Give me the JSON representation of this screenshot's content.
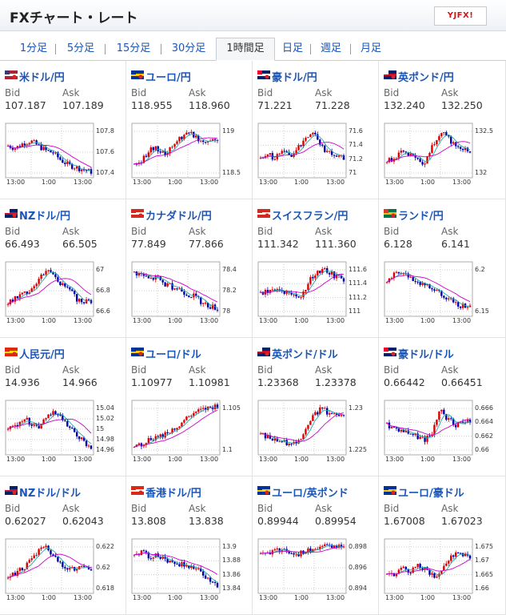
{
  "header": {
    "title": "FXチャート・レート",
    "logo_text": "YJFX!"
  },
  "tabs": [
    {
      "label": "1分足"
    },
    {
      "label": "5分足"
    },
    {
      "label": "15分足"
    },
    {
      "label": "30分足"
    },
    {
      "label": "1時間足",
      "active": true
    },
    {
      "label": "日足"
    },
    {
      "label": "週足"
    },
    {
      "label": "月足"
    }
  ],
  "labels": {
    "bid": "Bid",
    "ask": "Ask"
  },
  "pairs": [
    {
      "name": "米ドル/円",
      "bid": "107.187",
      "ask": "107.189",
      "yticks": [
        "107.8",
        "107.6",
        "107.4"
      ],
      "xticks": [
        "13:00",
        "1:00",
        "13:00"
      ],
      "flag": "us",
      "trend": [
        0.6,
        0.55,
        0.65,
        0.7,
        0.6,
        0.5,
        0.45,
        0.3,
        0.2,
        0.15,
        0.1,
        0.05
      ]
    },
    {
      "name": "ユーロ/円",
      "bid": "118.955",
      "ask": "118.960",
      "yticks": [
        "119",
        "118.5"
      ],
      "xticks": [
        "13:00",
        "1:00",
        "13:00"
      ],
      "flag": "eu",
      "trend": [
        0.2,
        0.3,
        0.5,
        0.55,
        0.4,
        0.6,
        0.75,
        0.9,
        0.8,
        0.7,
        0.72,
        0.75
      ]
    },
    {
      "name": "豪ドル/円",
      "bid": "71.221",
      "ask": "71.228",
      "yticks": [
        "71.6",
        "71.4",
        "71.2",
        "71"
      ],
      "xticks": [
        "13:00",
        "1:00",
        "13:00"
      ],
      "flag": "au",
      "trend": [
        0.3,
        0.4,
        0.35,
        0.5,
        0.4,
        0.55,
        0.8,
        0.9,
        0.6,
        0.45,
        0.4,
        0.35
      ]
    },
    {
      "name": "英ポンド/円",
      "bid": "132.240",
      "ask": "132.250",
      "yticks": [
        "132.5",
        "132"
      ],
      "xticks": [
        "13:00",
        "1:00",
        "13:00"
      ],
      "flag": "uk",
      "trend": [
        0.3,
        0.35,
        0.45,
        0.4,
        0.3,
        0.2,
        0.6,
        0.85,
        0.8,
        0.6,
        0.55,
        0.5
      ]
    },
    {
      "name": "NZドル/円",
      "bid": "66.493",
      "ask": "66.505",
      "yticks": [
        "67",
        "66.8",
        "66.6"
      ],
      "xticks": [
        "13:00",
        "1:00",
        "13:00"
      ],
      "flag": "nz",
      "trend": [
        0.2,
        0.3,
        0.4,
        0.5,
        0.7,
        0.9,
        0.85,
        0.6,
        0.5,
        0.3,
        0.25,
        0.25
      ]
    },
    {
      "name": "カナダドル/円",
      "bid": "77.849",
      "ask": "77.866",
      "yticks": [
        "78.4",
        "78.2",
        "78"
      ],
      "xticks": [
        "13:00",
        "1:00",
        "13:00"
      ],
      "flag": "ca",
      "trend": [
        0.85,
        0.8,
        0.7,
        0.75,
        0.6,
        0.55,
        0.5,
        0.4,
        0.35,
        0.2,
        0.15,
        0.1
      ]
    },
    {
      "name": "スイスフラン/円",
      "bid": "111.342",
      "ask": "111.360",
      "yticks": [
        "111.6",
        "111.4",
        "111.2",
        "111"
      ],
      "xticks": [
        "13:00",
        "1:00",
        "13:00"
      ],
      "flag": "ch",
      "trend": [
        0.4,
        0.45,
        0.5,
        0.45,
        0.35,
        0.3,
        0.55,
        0.8,
        0.9,
        0.85,
        0.75,
        0.7
      ]
    },
    {
      "name": "ランド/円",
      "bid": "6.128",
      "ask": "6.141",
      "yticks": [
        "6.2",
        "6.15"
      ],
      "xticks": [
        "13:00",
        "1:00",
        "13:00"
      ],
      "flag": "za",
      "trend": [
        0.7,
        0.8,
        0.85,
        0.75,
        0.65,
        0.6,
        0.5,
        0.4,
        0.3,
        0.2,
        0.15,
        0.2
      ]
    },
    {
      "name": "人民元/円",
      "bid": "14.936",
      "ask": "14.966",
      "yticks": [
        "15.04",
        "15.02",
        "15",
        "14.98",
        "14.96"
      ],
      "xticks": [
        "13:00",
        "1:00",
        "13:00"
      ],
      "flag": "cn",
      "trend": [
        0.5,
        0.55,
        0.7,
        0.6,
        0.5,
        0.75,
        0.8,
        0.7,
        0.5,
        0.35,
        0.2,
        0.1
      ]
    },
    {
      "name": "ユーロ/ドル",
      "bid": "1.10977",
      "ask": "1.10981",
      "yticks": [
        "1.105",
        "1.1"
      ],
      "xticks": [
        "13:00",
        "1:00",
        "13:00"
      ],
      "flag": "eu",
      "trend": [
        0.1,
        0.15,
        0.25,
        0.3,
        0.35,
        0.45,
        0.55,
        0.7,
        0.8,
        0.85,
        0.9,
        0.95
      ]
    },
    {
      "name": "英ポンド/ドル",
      "bid": "1.23368",
      "ask": "1.23378",
      "yticks": [
        "1.23",
        "1.225"
      ],
      "xticks": [
        "13:00",
        "1:00",
        "13:00"
      ],
      "flag": "uk",
      "trend": [
        0.35,
        0.3,
        0.25,
        0.2,
        0.15,
        0.25,
        0.45,
        0.75,
        0.9,
        0.8,
        0.75,
        0.8
      ]
    },
    {
      "name": "豪ドル/ドル",
      "bid": "0.66442",
      "ask": "0.66451",
      "yticks": [
        "0.666",
        "0.664",
        "0.662",
        "0.66"
      ],
      "xticks": [
        "13:00",
        "1:00",
        "13:00"
      ],
      "flag": "au",
      "trend": [
        0.55,
        0.5,
        0.45,
        0.4,
        0.3,
        0.25,
        0.4,
        0.85,
        0.7,
        0.55,
        0.6,
        0.65
      ]
    },
    {
      "name": "NZドル/ドル",
      "bid": "0.62027",
      "ask": "0.62043",
      "yticks": [
        "0.622",
        "0.62",
        "0.618"
      ],
      "xticks": [
        "13:00",
        "1:00",
        "13:00"
      ],
      "flag": "nz",
      "trend": [
        0.3,
        0.35,
        0.45,
        0.6,
        0.8,
        0.9,
        0.7,
        0.55,
        0.45,
        0.4,
        0.5,
        0.45
      ]
    },
    {
      "name": "香港ドル/円",
      "bid": "13.808",
      "ask": "13.838",
      "yticks": [
        "13.9",
        "13.88",
        "13.86",
        "13.84"
      ],
      "xticks": [
        "13:00",
        "1:00",
        "13:00"
      ],
      "flag": "hk",
      "trend": [
        0.75,
        0.8,
        0.7,
        0.75,
        0.65,
        0.6,
        0.55,
        0.5,
        0.45,
        0.35,
        0.2,
        0.1
      ]
    },
    {
      "name": "ユーロ/英ポンド",
      "bid": "0.89944",
      "ask": "0.89954",
      "yticks": [
        "0.898",
        "0.896",
        "0.894"
      ],
      "xticks": [
        "13:00",
        "1:00",
        "13:00"
      ],
      "flag": "eu",
      "trend": [
        0.75,
        0.8,
        0.8,
        0.85,
        0.8,
        0.75,
        0.8,
        0.85,
        0.9,
        0.9,
        0.92,
        0.95
      ]
    },
    {
      "name": "ユーロ/豪ドル",
      "bid": "1.67008",
      "ask": "1.67023",
      "yticks": [
        "1.675",
        "1.67",
        "1.665",
        "1.66"
      ],
      "xticks": [
        "13:00",
        "1:00",
        "13:00"
      ],
      "flag": "eu",
      "trend": [
        0.3,
        0.35,
        0.45,
        0.4,
        0.5,
        0.45,
        0.3,
        0.35,
        0.55,
        0.8,
        0.75,
        0.7
      ]
    }
  ]
}
